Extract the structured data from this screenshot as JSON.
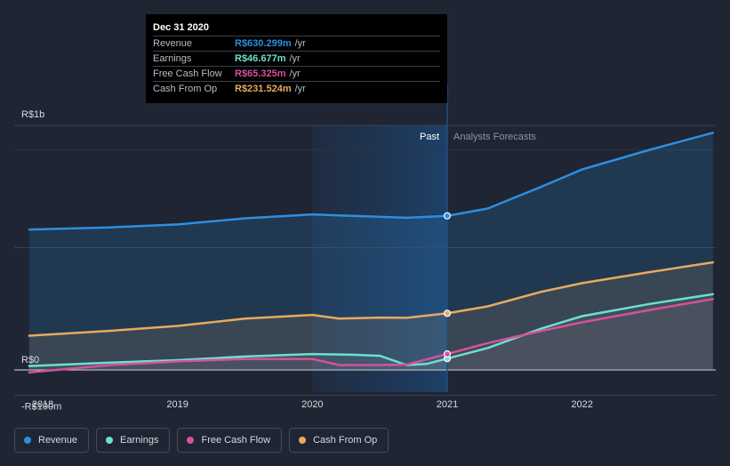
{
  "chart_data": {
    "type": "line",
    "currency_prefix": "R$",
    "x_tick_labels": [
      "2018",
      "2019",
      "2020",
      "2021",
      "2022"
    ],
    "x_range": [
      2017.9,
      2022.97
    ],
    "ylim": [
      -100,
      1000
    ],
    "y_labels": [
      {
        "value": 1000,
        "label": "R$1b"
      },
      {
        "value": 0,
        "label": "R$0"
      },
      {
        "value": -100,
        "label": "-R$100m"
      }
    ],
    "region_labels": {
      "past": "Past",
      "forecast": "Analysts Forecasts"
    },
    "past_region": [
      2020.0,
      2021.0
    ],
    "divider_x": 2021.0,
    "series": [
      {
        "name": "Revenue",
        "color": "#2d8ee0",
        "points": [
          [
            2017.9,
            574
          ],
          [
            2018.5,
            583
          ],
          [
            2019.0,
            595
          ],
          [
            2019.5,
            620
          ],
          [
            2020.0,
            636
          ],
          [
            2020.3,
            630
          ],
          [
            2020.7,
            622
          ],
          [
            2021.0,
            630.3
          ],
          [
            2021.3,
            660
          ],
          [
            2021.7,
            750
          ],
          [
            2022.0,
            820
          ],
          [
            2022.5,
            900
          ],
          [
            2022.97,
            970
          ]
        ]
      },
      {
        "name": "Earnings",
        "color": "#6de0cf",
        "points": [
          [
            2017.9,
            16
          ],
          [
            2018.5,
            30
          ],
          [
            2019.0,
            40
          ],
          [
            2019.5,
            55
          ],
          [
            2020.0,
            65
          ],
          [
            2020.3,
            62
          ],
          [
            2020.5,
            58
          ],
          [
            2020.7,
            20
          ],
          [
            2020.85,
            25
          ],
          [
            2021.0,
            46.677
          ],
          [
            2021.3,
            90
          ],
          [
            2021.7,
            170
          ],
          [
            2022.0,
            220
          ],
          [
            2022.5,
            270
          ],
          [
            2022.97,
            310
          ]
        ]
      },
      {
        "name": "Free Cash Flow",
        "color": "#d5519d",
        "points": [
          [
            2017.9,
            -10
          ],
          [
            2018.5,
            20
          ],
          [
            2019.0,
            35
          ],
          [
            2019.5,
            45
          ],
          [
            2020.0,
            45
          ],
          [
            2020.2,
            20
          ],
          [
            2020.5,
            20
          ],
          [
            2020.7,
            22
          ],
          [
            2021.0,
            65.325
          ],
          [
            2021.3,
            110
          ],
          [
            2021.7,
            160
          ],
          [
            2022.0,
            195
          ],
          [
            2022.5,
            245
          ],
          [
            2022.97,
            290
          ]
        ]
      },
      {
        "name": "Cash From Op",
        "color": "#e7aa5f",
        "points": [
          [
            2017.9,
            140
          ],
          [
            2018.5,
            160
          ],
          [
            2019.0,
            180
          ],
          [
            2019.5,
            210
          ],
          [
            2020.0,
            225
          ],
          [
            2020.2,
            210
          ],
          [
            2020.5,
            214
          ],
          [
            2020.7,
            213
          ],
          [
            2021.0,
            231.524
          ],
          [
            2021.3,
            260
          ],
          [
            2021.7,
            320
          ],
          [
            2022.0,
            355
          ],
          [
            2022.5,
            400
          ],
          [
            2022.97,
            440
          ]
        ]
      }
    ]
  },
  "tooltip": {
    "date": "Dec 31 2020",
    "unit": "/yr",
    "rows": [
      {
        "label": "Revenue",
        "value": "R$630.299m",
        "color": "#2d8ee0"
      },
      {
        "label": "Earnings",
        "value": "R$46.677m",
        "color": "#6de0cf"
      },
      {
        "label": "Free Cash Flow",
        "value": "R$65.325m",
        "color": "#d5519d"
      },
      {
        "label": "Cash From Op",
        "value": "R$231.524m",
        "color": "#e7aa5f"
      }
    ]
  },
  "legend": [
    {
      "label": "Revenue",
      "color": "#2d8ee0"
    },
    {
      "label": "Earnings",
      "color": "#6de0cf"
    },
    {
      "label": "Free Cash Flow",
      "color": "#d5519d"
    },
    {
      "label": "Cash From Op",
      "color": "#e7aa5f"
    }
  ]
}
